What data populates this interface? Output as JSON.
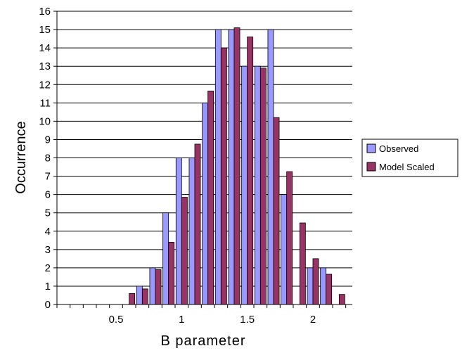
{
  "chart_data": {
    "type": "bar",
    "xlabel": "B parameter",
    "ylabel": "Occurrence",
    "ylim": [
      0,
      16
    ],
    "yticks": [
      0,
      1,
      2,
      3,
      4,
      5,
      6,
      7,
      8,
      9,
      10,
      11,
      12,
      13,
      14,
      15,
      16
    ],
    "xlim": [
      0.05,
      2.3
    ],
    "xtick_labels": [
      "0.5",
      "1",
      "1.5",
      "2"
    ],
    "bin_width": 0.1,
    "x": [
      0.1,
      0.2,
      0.3,
      0.4,
      0.5,
      0.6,
      0.7,
      0.8,
      0.9,
      1.0,
      1.1,
      1.2,
      1.3,
      1.4,
      1.5,
      1.6,
      1.7,
      1.8,
      1.9,
      2.0,
      2.1,
      2.2
    ],
    "series": [
      {
        "name": "Observed",
        "color": "#9999ff",
        "values": [
          0,
          0,
          0,
          0,
          0,
          0,
          1,
          2,
          5,
          8,
          8,
          11,
          15,
          15,
          13,
          13,
          15,
          6,
          0,
          2,
          2,
          0
        ]
      },
      {
        "name": "Model Scaled",
        "color": "#993366",
        "values": [
          0,
          0,
          0,
          0,
          0,
          0.6,
          0.85,
          1.9,
          3.4,
          5.85,
          8.75,
          11.65,
          14.0,
          15.1,
          14.6,
          12.9,
          10.2,
          7.25,
          4.45,
          2.5,
          1.65,
          0.55
        ]
      }
    ],
    "grid": true,
    "legend_position": "right"
  }
}
